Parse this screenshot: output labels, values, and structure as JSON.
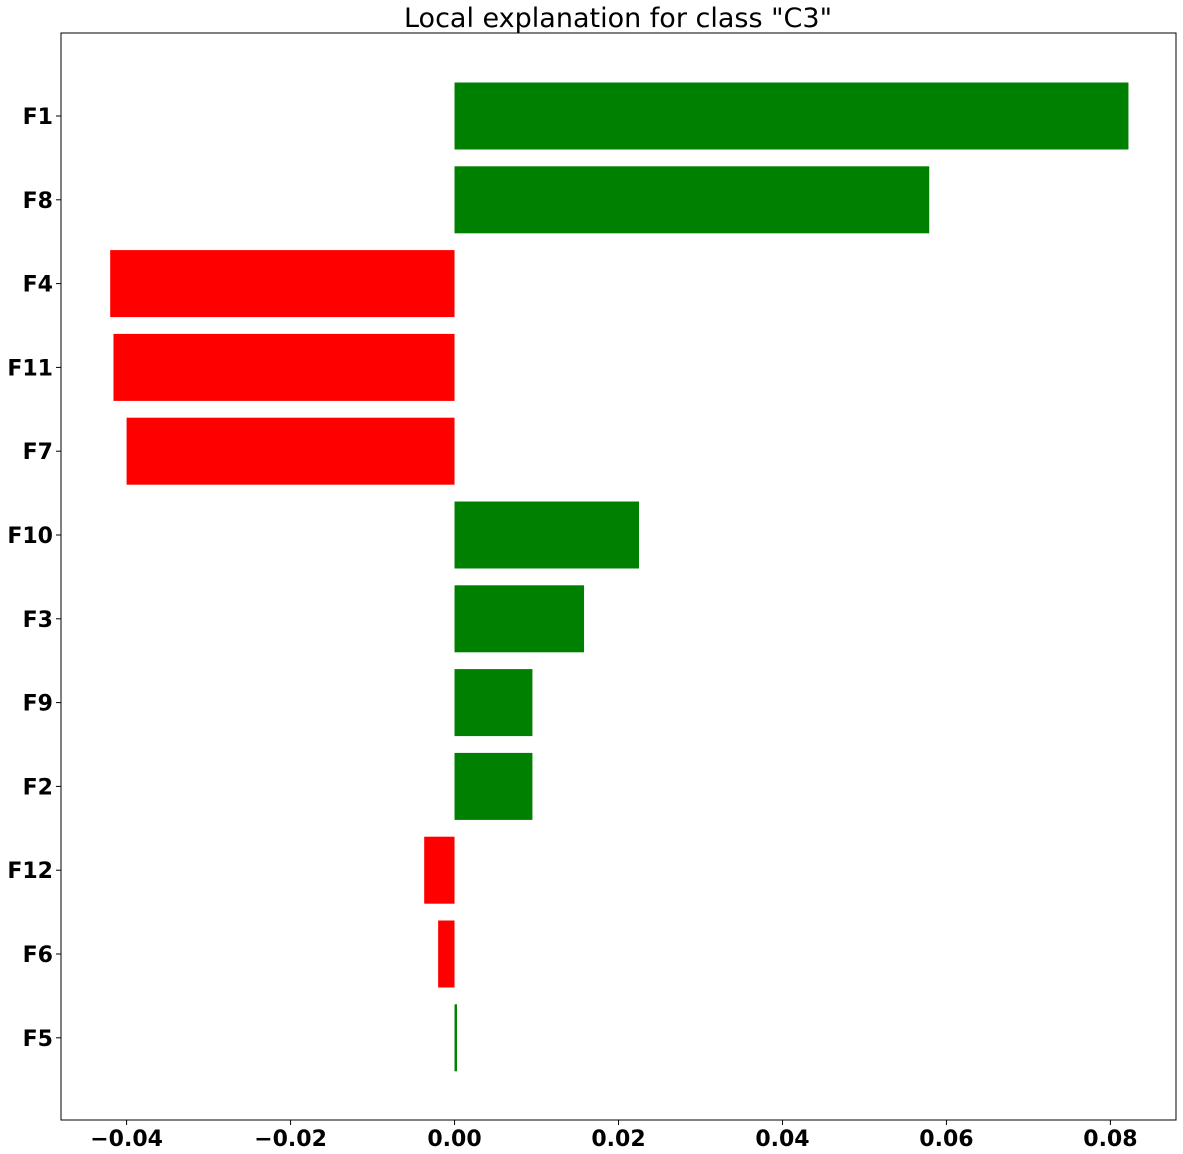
{
  "chart_data": {
    "type": "bar",
    "orientation": "horizontal",
    "title": "Local explanation for class \"C3\"",
    "xlabel": "",
    "ylabel": "",
    "categories": [
      "F1",
      "F8",
      "F4",
      "F11",
      "F7",
      "F10",
      "F3",
      "F9",
      "F2",
      "F12",
      "F6",
      "F5"
    ],
    "values": [
      0.0822,
      0.0579,
      -0.042,
      -0.0416,
      -0.04,
      0.0225,
      0.0158,
      0.0095,
      0.0095,
      -0.0037,
      -0.002,
      0.0003
    ],
    "xlim": [
      -0.048,
      0.088
    ],
    "xticks": [
      -0.04,
      -0.02,
      0.0,
      0.02,
      0.04,
      0.06,
      0.08
    ],
    "xtick_labels": [
      "−0.04",
      "−0.02",
      "0.00",
      "0.02",
      "0.04",
      "0.06",
      "0.08"
    ],
    "colors": {
      "positive": "#008000",
      "negative": "#ff0000"
    },
    "grid": false,
    "legend": "none"
  }
}
